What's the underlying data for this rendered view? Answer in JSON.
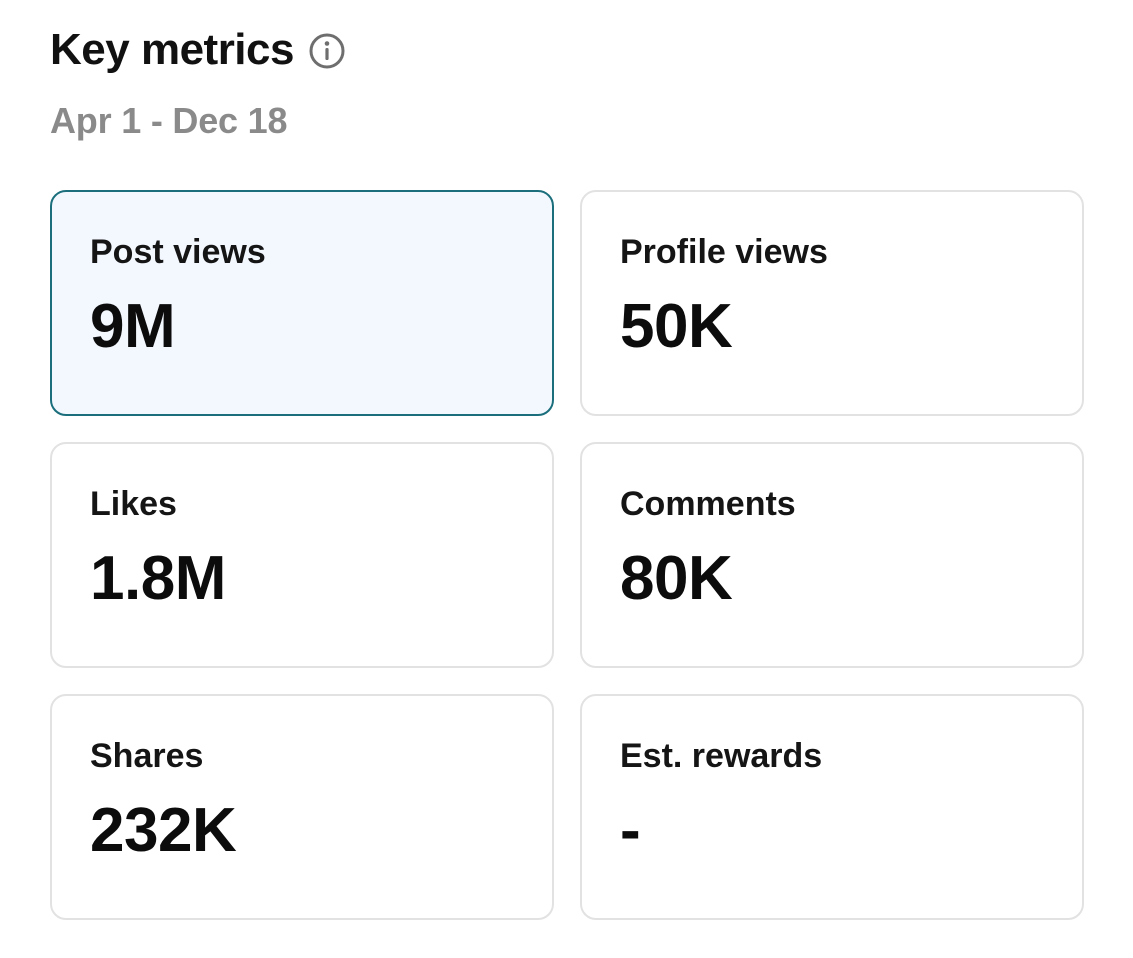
{
  "header": {
    "title": "Key metrics",
    "info_icon": "info-circle-icon",
    "date_range": "Apr 1 - Dec 18"
  },
  "colors": {
    "selected_border": "#1b6f7c",
    "selected_background": "#f3f8ff",
    "muted_text": "#8a8a8a"
  },
  "metrics": [
    {
      "label": "Post views",
      "value": "9M",
      "selected": true
    },
    {
      "label": "Profile views",
      "value": "50K",
      "selected": false
    },
    {
      "label": "Likes",
      "value": "1.8M",
      "selected": false
    },
    {
      "label": "Comments",
      "value": "80K",
      "selected": false
    },
    {
      "label": "Shares",
      "value": "232K",
      "selected": false
    },
    {
      "label": "Est. rewards",
      "value": "-",
      "selected": false
    }
  ]
}
